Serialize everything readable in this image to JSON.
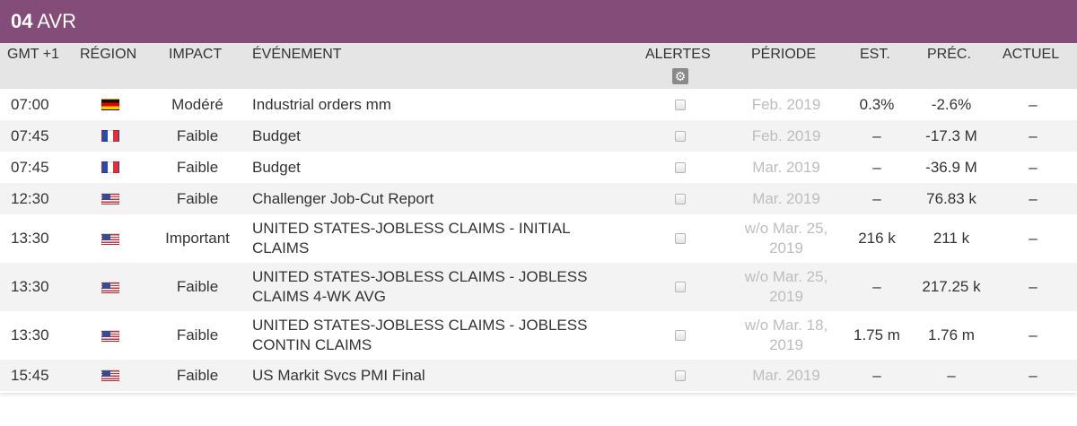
{
  "date": {
    "day": "04",
    "month": "AVR"
  },
  "columns": {
    "time": "GMT +1",
    "region": "RÉGION",
    "impact": "IMPACT",
    "event": "ÉVÉNEMENT",
    "alerts": "ALERTES",
    "period": "PÉRIODE",
    "est": "EST.",
    "prev": "PRÉC.",
    "actual": "ACTUEL"
  },
  "alerts_settings_icon": "gear-icon",
  "rows": [
    {
      "time": "07:00",
      "flag": "de",
      "impact": "Modéré",
      "event": "Industrial orders mm",
      "period": "Feb. 2019",
      "est": "0.3%",
      "prev": "-2.6%",
      "actual": "–"
    },
    {
      "time": "07:45",
      "flag": "fr",
      "impact": "Faible",
      "event": "Budget",
      "period": "Feb. 2019",
      "est": "–",
      "prev": "-17.3 M",
      "actual": "–"
    },
    {
      "time": "07:45",
      "flag": "fr",
      "impact": "Faible",
      "event": "Budget",
      "period": "Mar. 2019",
      "est": "–",
      "prev": "-36.9 M",
      "actual": "–"
    },
    {
      "time": "12:30",
      "flag": "us",
      "impact": "Faible",
      "event": "Challenger Job-Cut Report",
      "period": "Mar. 2019",
      "est": "–",
      "prev": "76.83 k",
      "actual": "–"
    },
    {
      "time": "13:30",
      "flag": "us",
      "impact": "Important",
      "event": "UNITED STATES-JOBLESS CLAIMS - INITIAL CLAIMS",
      "period": "w/o Mar. 25, 2019",
      "est": "216 k",
      "prev": "211 k",
      "actual": "–"
    },
    {
      "time": "13:30",
      "flag": "us",
      "impact": "Faible",
      "event": "UNITED STATES-JOBLESS CLAIMS - JOBLESS CLAIMS 4-WK AVG",
      "period": "w/o Mar. 25, 2019",
      "est": "–",
      "prev": "217.25 k",
      "actual": "–"
    },
    {
      "time": "13:30",
      "flag": "us",
      "impact": "Faible",
      "event": "UNITED STATES-JOBLESS CLAIMS - JOBLESS CONTIN CLAIMS",
      "period": "w/o Mar. 18, 2019",
      "est": "1.75 m",
      "prev": "1.76 m",
      "actual": "–"
    },
    {
      "time": "15:45",
      "flag": "us",
      "impact": "Faible",
      "event": "US Markit Svcs PMI Final",
      "period": "Mar. 2019",
      "est": "–",
      "prev": "–",
      "actual": "–"
    }
  ]
}
